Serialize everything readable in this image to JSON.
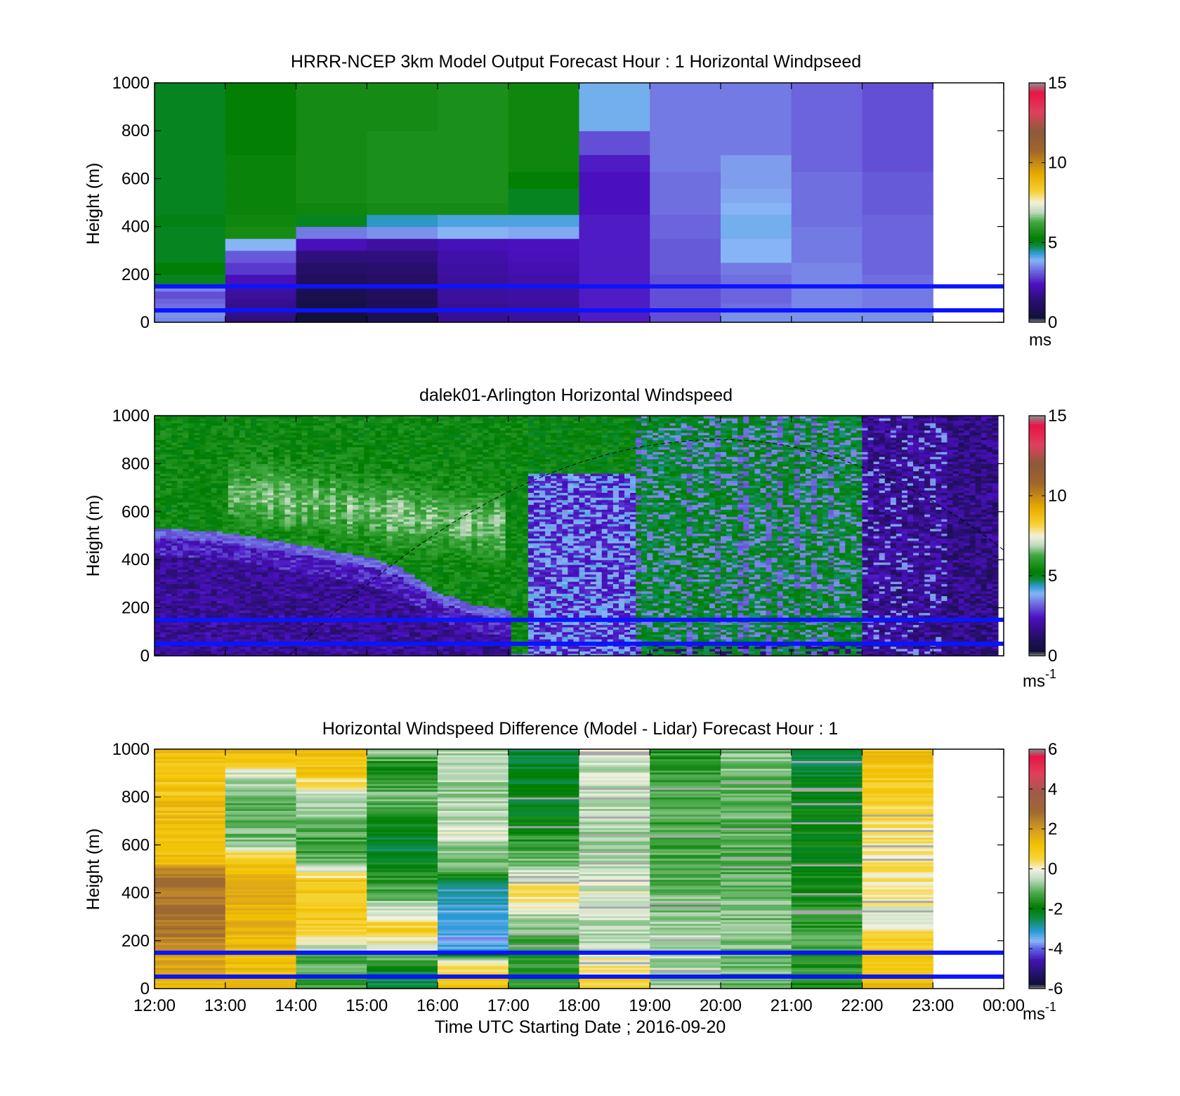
{
  "figure": {
    "xlabel": "Time UTC  Starting Date ; 2016-09-20",
    "x_ticks": [
      "12:00",
      "13:00",
      "14:00",
      "15:00",
      "16:00",
      "17:00",
      "18:00",
      "19:00",
      "20:00",
      "21:00",
      "22:00",
      "23:00",
      "00:00"
    ]
  },
  "chart_data": [
    {
      "type": "heatmap",
      "title": "HRRR-NCEP 3km Model Output   Forecast Hour : 1 Horizontal Windpseed",
      "ylabel": "Height (m)",
      "ylim": [
        0,
        1000
      ],
      "y_ticks": [
        "0",
        "200",
        "400",
        "600",
        "800",
        "1000"
      ],
      "xlim_hours": [
        12,
        24
      ],
      "colorbar": {
        "ticks": [
          "0",
          "5",
          "10",
          "15"
        ],
        "range": [
          0,
          15
        ],
        "unit": "ms"
      },
      "column_hours": [
        12,
        13,
        14,
        15,
        16,
        17,
        18,
        19,
        20,
        21,
        22
      ],
      "level_bounds_m": [
        0,
        20,
        40,
        60,
        80,
        100,
        130,
        160,
        200,
        250,
        300,
        350,
        400,
        450,
        500,
        560,
        630,
        700,
        800,
        1000
      ],
      "values": [
        [
          3.5,
          1.5,
          0.4,
          0.8,
          1.8,
          1.9,
          2.5,
          3.0,
          3.6,
          3.6,
          3.6
        ],
        [
          3.6,
          1.6,
          0.4,
          0.8,
          1.8,
          1.9,
          2.5,
          3.0,
          3.6,
          3.6,
          3.6
        ],
        [
          3.4,
          1.6,
          0.5,
          0.8,
          1.8,
          1.9,
          2.5,
          3.0,
          3.4,
          3.6,
          3.5
        ],
        [
          3.3,
          1.7,
          0.5,
          0.9,
          1.8,
          1.9,
          2.5,
          3.0,
          3.3,
          3.5,
          3.4
        ],
        [
          3.2,
          1.8,
          0.6,
          0.9,
          1.9,
          2.0,
          2.5,
          3.0,
          3.2,
          3.5,
          3.4
        ],
        [
          3.0,
          1.9,
          0.7,
          1.0,
          1.9,
          2.0,
          2.5,
          3.0,
          3.2,
          3.5,
          3.4
        ],
        [
          3.5,
          2.0,
          0.8,
          1.0,
          1.9,
          2.0,
          2.5,
          3.0,
          3.2,
          3.5,
          3.4
        ],
        [
          5.0,
          2.3,
          1.0,
          1.1,
          1.9,
          2.1,
          2.5,
          3.0,
          3.3,
          3.5,
          3.3
        ],
        [
          5.2,
          2.8,
          1.2,
          1.3,
          2.0,
          2.2,
          2.5,
          3.1,
          3.4,
          3.5,
          3.2
        ],
        [
          5.0,
          3.1,
          1.5,
          1.5,
          2.1,
          2.3,
          2.5,
          3.1,
          3.9,
          3.4,
          3.2
        ],
        [
          5.0,
          3.9,
          2.3,
          2.0,
          2.3,
          2.4,
          2.5,
          3.1,
          3.9,
          3.4,
          3.2
        ],
        [
          5.0,
          5.6,
          3.4,
          3.6,
          3.9,
          3.8,
          2.5,
          3.2,
          4.0,
          3.4,
          3.2
        ],
        [
          5.1,
          5.5,
          5.0,
          4.4,
          4.2,
          4.2,
          2.5,
          3.2,
          4.0,
          3.3,
          3.2
        ],
        [
          5.0,
          5.4,
          5.5,
          5.6,
          5.6,
          5.0,
          2.4,
          3.3,
          3.9,
          3.3,
          3.1
        ],
        [
          5.0,
          5.4,
          5.6,
          5.7,
          5.7,
          5.0,
          2.4,
          3.3,
          3.8,
          3.3,
          3.1
        ],
        [
          5.0,
          5.4,
          5.6,
          5.7,
          5.7,
          5.3,
          2.4,
          3.3,
          3.7,
          3.3,
          3.1
        ],
        [
          5.0,
          5.4,
          5.6,
          5.7,
          5.7,
          5.5,
          2.5,
          3.4,
          3.7,
          3.2,
          3.0
        ],
        [
          5.0,
          5.3,
          5.6,
          5.7,
          5.7,
          5.5,
          3.0,
          3.4,
          3.4,
          3.2,
          3.0
        ],
        [
          5.0,
          5.3,
          5.6,
          5.6,
          5.7,
          5.5,
          4.0,
          3.4,
          3.4,
          3.2,
          3.0
        ]
      ],
      "overlay_lines_m": [
        50,
        150
      ]
    },
    {
      "type": "heatmap",
      "title": "dalek01-Arlington  Horizontal Windspeed",
      "ylabel": "Height (m)",
      "ylim": [
        0,
        1000
      ],
      "y_ticks": [
        "0",
        "200",
        "400",
        "600",
        "800",
        "1000"
      ],
      "xlim_hours": [
        12,
        24
      ],
      "data_end_hour": 23.9,
      "colorbar": {
        "ticks": [
          "0",
          "5",
          "10",
          "15"
        ],
        "range": [
          0,
          15
        ],
        "unit": "ms",
        "unit_exponent": "-1"
      },
      "boundary_layer_top_m": [
        [
          12.0,
          520
        ],
        [
          13.0,
          500
        ],
        [
          14.0,
          450
        ],
        [
          15.0,
          400
        ],
        [
          15.5,
          350
        ],
        [
          16.0,
          250
        ],
        [
          16.5,
          200
        ],
        [
          17.0,
          180
        ]
      ],
      "profile_note": "time-height windspeed profile",
      "overlay_lines_m": [
        50,
        150
      ],
      "dashed_curve": {
        "start_hour": 13.9,
        "peak_hour": 20.0,
        "peak_m": 900,
        "end_hour": 24.0,
        "end_m": 440
      }
    },
    {
      "type": "heatmap",
      "title": "Horizontal Windspeed Difference (Model - Lidar) Forecast Hour : 1",
      "ylabel": "Height (m)",
      "ylim": [
        0,
        1000
      ],
      "y_ticks": [
        "0",
        "200",
        "400",
        "600",
        "800",
        "1000"
      ],
      "xlim_hours": [
        12,
        24
      ],
      "colorbar": {
        "ticks": [
          "-6",
          "-4",
          "-2",
          "0",
          "2",
          "4",
          "6"
        ],
        "range": [
          -6,
          6
        ],
        "unit": "ms",
        "unit_exponent": "-1"
      },
      "column_hours": [
        12,
        13,
        14,
        15,
        16,
        17,
        18,
        19,
        20,
        21,
        22
      ],
      "column_profiles": [
        [
          [
            0,
            1.5
          ],
          [
            150,
            1.8
          ],
          [
            200,
            2.5
          ],
          [
            350,
            2.8
          ],
          [
            500,
            2.5
          ],
          [
            520,
            1.3
          ],
          [
            700,
            1.3
          ],
          [
            850,
            1.0
          ],
          [
            1000,
            1.1
          ]
        ],
        [
          [
            0,
            1.2
          ],
          [
            200,
            1.3
          ],
          [
            400,
            1.8
          ],
          [
            500,
            1.3
          ],
          [
            550,
            0.8
          ],
          [
            600,
            -0.8
          ],
          [
            700,
            -1.2
          ],
          [
            800,
            -1.0
          ],
          [
            900,
            -0.3
          ],
          [
            950,
            1.0
          ],
          [
            1000,
            1.2
          ]
        ],
        [
          [
            0,
            -1.5
          ],
          [
            150,
            -1.0
          ],
          [
            200,
            0.2
          ],
          [
            300,
            0.9
          ],
          [
            450,
            1.0
          ],
          [
            500,
            -0.5
          ],
          [
            600,
            -1.5
          ],
          [
            700,
            -1.0
          ],
          [
            800,
            -0.5
          ],
          [
            900,
            1.0
          ],
          [
            1000,
            1.1
          ]
        ],
        [
          [
            0,
            -2.5
          ],
          [
            80,
            -2.2
          ],
          [
            150,
            -0.5
          ],
          [
            250,
            0.9
          ],
          [
            330,
            -0.5
          ],
          [
            450,
            -1.5
          ],
          [
            600,
            -2.4
          ],
          [
            700,
            -1.8
          ],
          [
            800,
            -0.8
          ],
          [
            900,
            -2.0
          ],
          [
            1000,
            -0.8
          ]
        ],
        [
          [
            0,
            1.0
          ],
          [
            100,
            0.5
          ],
          [
            160,
            -3.5
          ],
          [
            300,
            -3.3
          ],
          [
            420,
            -3.0
          ],
          [
            500,
            -1.2
          ],
          [
            650,
            -0.3
          ],
          [
            800,
            -0.8
          ],
          [
            1000,
            -0.5
          ]
        ],
        [
          [
            0,
            -1.5
          ],
          [
            200,
            -1.2
          ],
          [
            300,
            -0.5
          ],
          [
            400,
            0.5
          ],
          [
            500,
            -0.5
          ],
          [
            600,
            -1.5
          ],
          [
            750,
            -2.0
          ],
          [
            1000,
            -2.2
          ]
        ],
        [
          [
            0,
            0.8
          ],
          [
            200,
            -0.5
          ],
          [
            400,
            -0.2
          ],
          [
            600,
            -0.6
          ],
          [
            800,
            -0.4
          ],
          [
            1000,
            -0.3
          ]
        ],
        [
          [
            0,
            -0.7
          ],
          [
            200,
            -0.5
          ],
          [
            400,
            -1.0
          ],
          [
            600,
            -1.3
          ],
          [
            800,
            -1.2
          ],
          [
            1000,
            -1.5
          ]
        ],
        [
          [
            0,
            -1.0
          ],
          [
            200,
            -0.8
          ],
          [
            400,
            -1.0
          ],
          [
            600,
            -1.2
          ],
          [
            800,
            -1.0
          ],
          [
            1000,
            -0.9
          ]
        ],
        [
          [
            0,
            -1.5
          ],
          [
            200,
            -1.3
          ],
          [
            400,
            -1.8
          ],
          [
            600,
            -1.9
          ],
          [
            800,
            -2.0
          ],
          [
            1000,
            -2.4
          ]
        ],
        [
          [
            0,
            1.5
          ],
          [
            200,
            0.8
          ],
          [
            300,
            -0.3
          ],
          [
            400,
            0.3
          ],
          [
            600,
            0.2
          ],
          [
            800,
            0.8
          ],
          [
            1000,
            1.2
          ]
        ]
      ],
      "overlay_lines_m": [
        50,
        150
      ]
    }
  ]
}
